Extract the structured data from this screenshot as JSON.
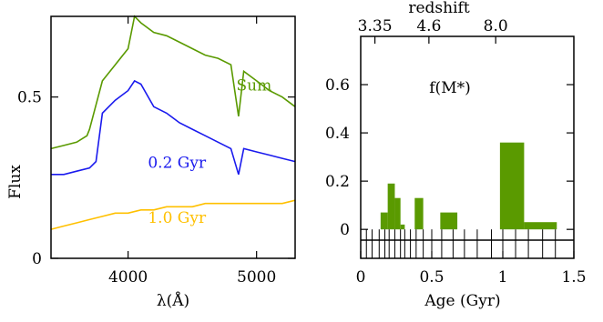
{
  "chart_data": [
    {
      "type": "line",
      "xlabel": "λ(Å)",
      "ylabel": "Flux",
      "xlim": [
        3400,
        5300
      ],
      "ylim": [
        0,
        0.75
      ],
      "xticks": [
        4000,
        5000
      ],
      "yticks": [
        0,
        0.5
      ],
      "grid": false,
      "legend": "labels inside plot",
      "series": [
        {
          "name": "Sum",
          "color": "#5a9a00",
          "label_pos": [
            4980,
            0.52
          ],
          "x": [
            3400,
            3500,
            3600,
            3680,
            3700,
            3800,
            3900,
            4000,
            4050,
            4100,
            4200,
            4300,
            4400,
            4500,
            4600,
            4700,
            4800,
            4860,
            4900,
            5000,
            5100,
            5200,
            5300
          ],
          "y": [
            0.34,
            0.35,
            0.36,
            0.38,
            0.4,
            0.55,
            0.6,
            0.65,
            0.75,
            0.73,
            0.7,
            0.69,
            0.67,
            0.65,
            0.63,
            0.62,
            0.6,
            0.44,
            0.58,
            0.55,
            0.52,
            0.5,
            0.47
          ]
        },
        {
          "name": "0.2 Gyr",
          "color": "#1a1aee",
          "label_pos": [
            4380,
            0.28
          ],
          "x": [
            3400,
            3500,
            3600,
            3700,
            3750,
            3800,
            3900,
            4000,
            4050,
            4100,
            4200,
            4300,
            4400,
            4500,
            4600,
            4700,
            4800,
            4860,
            4900,
            5000,
            5100,
            5200,
            5300
          ],
          "y": [
            0.26,
            0.26,
            0.27,
            0.28,
            0.3,
            0.45,
            0.49,
            0.52,
            0.55,
            0.54,
            0.47,
            0.45,
            0.42,
            0.4,
            0.38,
            0.36,
            0.34,
            0.26,
            0.34,
            0.33,
            0.32,
            0.31,
            0.3
          ]
        },
        {
          "name": "1.0 Gyr",
          "color": "#ffc000",
          "label_pos": [
            4380,
            0.11
          ],
          "x": [
            3400,
            3500,
            3600,
            3700,
            3800,
            3900,
            4000,
            4100,
            4200,
            4300,
            4400,
            4500,
            4600,
            4700,
            4800,
            4900,
            5000,
            5100,
            5200,
            5300
          ],
          "y": [
            0.09,
            0.1,
            0.11,
            0.12,
            0.13,
            0.14,
            0.14,
            0.15,
            0.15,
            0.16,
            0.16,
            0.16,
            0.17,
            0.17,
            0.17,
            0.17,
            0.17,
            0.17,
            0.17,
            0.18
          ]
        }
      ]
    },
    {
      "type": "bar",
      "title": "f(M*)",
      "xlabel": "Age (Gyr)",
      "top_xlabel": "redshift",
      "top_ticks": [
        "3.35",
        "4.6",
        "8.0"
      ],
      "xlim": [
        0,
        1.5
      ],
      "ylim": [
        -0.12,
        0.8
      ],
      "xticks": [
        "0",
        "0.5",
        "1",
        "1.5"
      ],
      "yticks": [
        "0",
        "0.2",
        "0.4",
        "0.6"
      ],
      "bar_color": "#5a9a00",
      "bars": [
        {
          "x0": 0.14,
          "x1": 0.19,
          "value": 0.07
        },
        {
          "x0": 0.19,
          "x1": 0.24,
          "value": 0.19
        },
        {
          "x0": 0.24,
          "x1": 0.28,
          "value": 0.13
        },
        {
          "x0": 0.28,
          "x1": 0.31,
          "value": 0.02
        },
        {
          "x0": 0.38,
          "x1": 0.44,
          "value": 0.13
        },
        {
          "x0": 0.56,
          "x1": 0.68,
          "value": 0.07
        },
        {
          "x0": 0.98,
          "x1": 1.15,
          "value": 0.36
        },
        {
          "x0": 1.15,
          "x1": 1.38,
          "value": 0.03
        }
      ],
      "rug_ticks": [
        0.04,
        0.08,
        0.13,
        0.17,
        0.2,
        0.24,
        0.28,
        0.31,
        0.35,
        0.39,
        0.44,
        0.5,
        0.57,
        0.65,
        0.73,
        0.82,
        0.92,
        1.0,
        1.09,
        1.18,
        1.28,
        1.37
      ]
    }
  ]
}
